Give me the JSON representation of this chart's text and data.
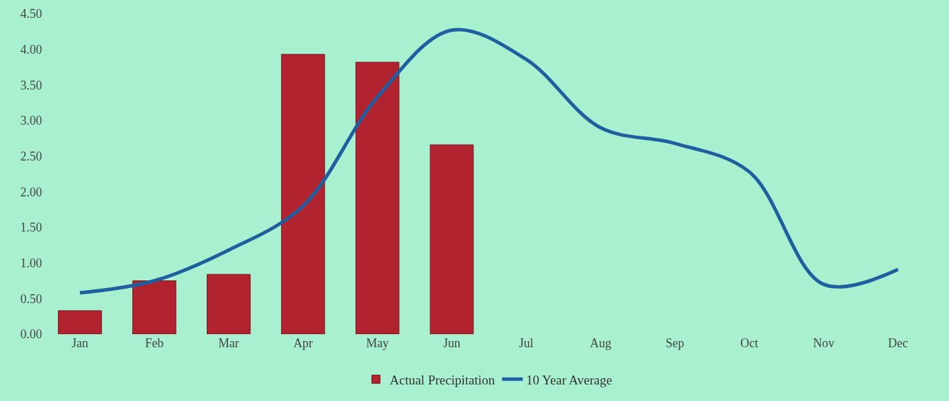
{
  "chart_data": {
    "type": "bar",
    "categories": [
      "Jan",
      "Feb",
      "Mar",
      "Apr",
      "May",
      "Jun",
      "Jul",
      "Aug",
      "Sep",
      "Oct",
      "Nov",
      "Dec"
    ],
    "series": [
      {
        "name": "Actual Precipitation",
        "color": "#b0232f",
        "values": [
          0.33,
          0.75,
          0.84,
          3.93,
          3.82,
          2.66,
          null,
          null,
          null,
          null,
          null,
          null
        ]
      },
      {
        "name": "10 Year Average",
        "type": "line",
        "color": "#1f5f9f",
        "values": [
          0.58,
          0.75,
          1.18,
          1.8,
          3.33,
          4.27,
          3.86,
          2.9,
          2.68,
          2.28,
          0.7,
          0.91
        ]
      }
    ],
    "ylim": [
      0,
      4.5
    ],
    "yticks": [
      {
        "value": 0,
        "label": "0.00"
      },
      {
        "value": 0.5,
        "label": "0.50"
      },
      {
        "value": 1,
        "label": "1.00"
      },
      {
        "value": 1.5,
        "label": "1.50"
      },
      {
        "value": 2,
        "label": "2.00"
      },
      {
        "value": 2.5,
        "label": "2.50"
      },
      {
        "value": 3,
        "label": "3.00"
      },
      {
        "value": 3.5,
        "label": "3.50"
      },
      {
        "value": 4,
        "label": "4.00"
      },
      {
        "value": 4.5,
        "label": "4.50"
      }
    ],
    "grid": false,
    "legend": "bottom",
    "marker": "none",
    "line_style": "solid"
  }
}
